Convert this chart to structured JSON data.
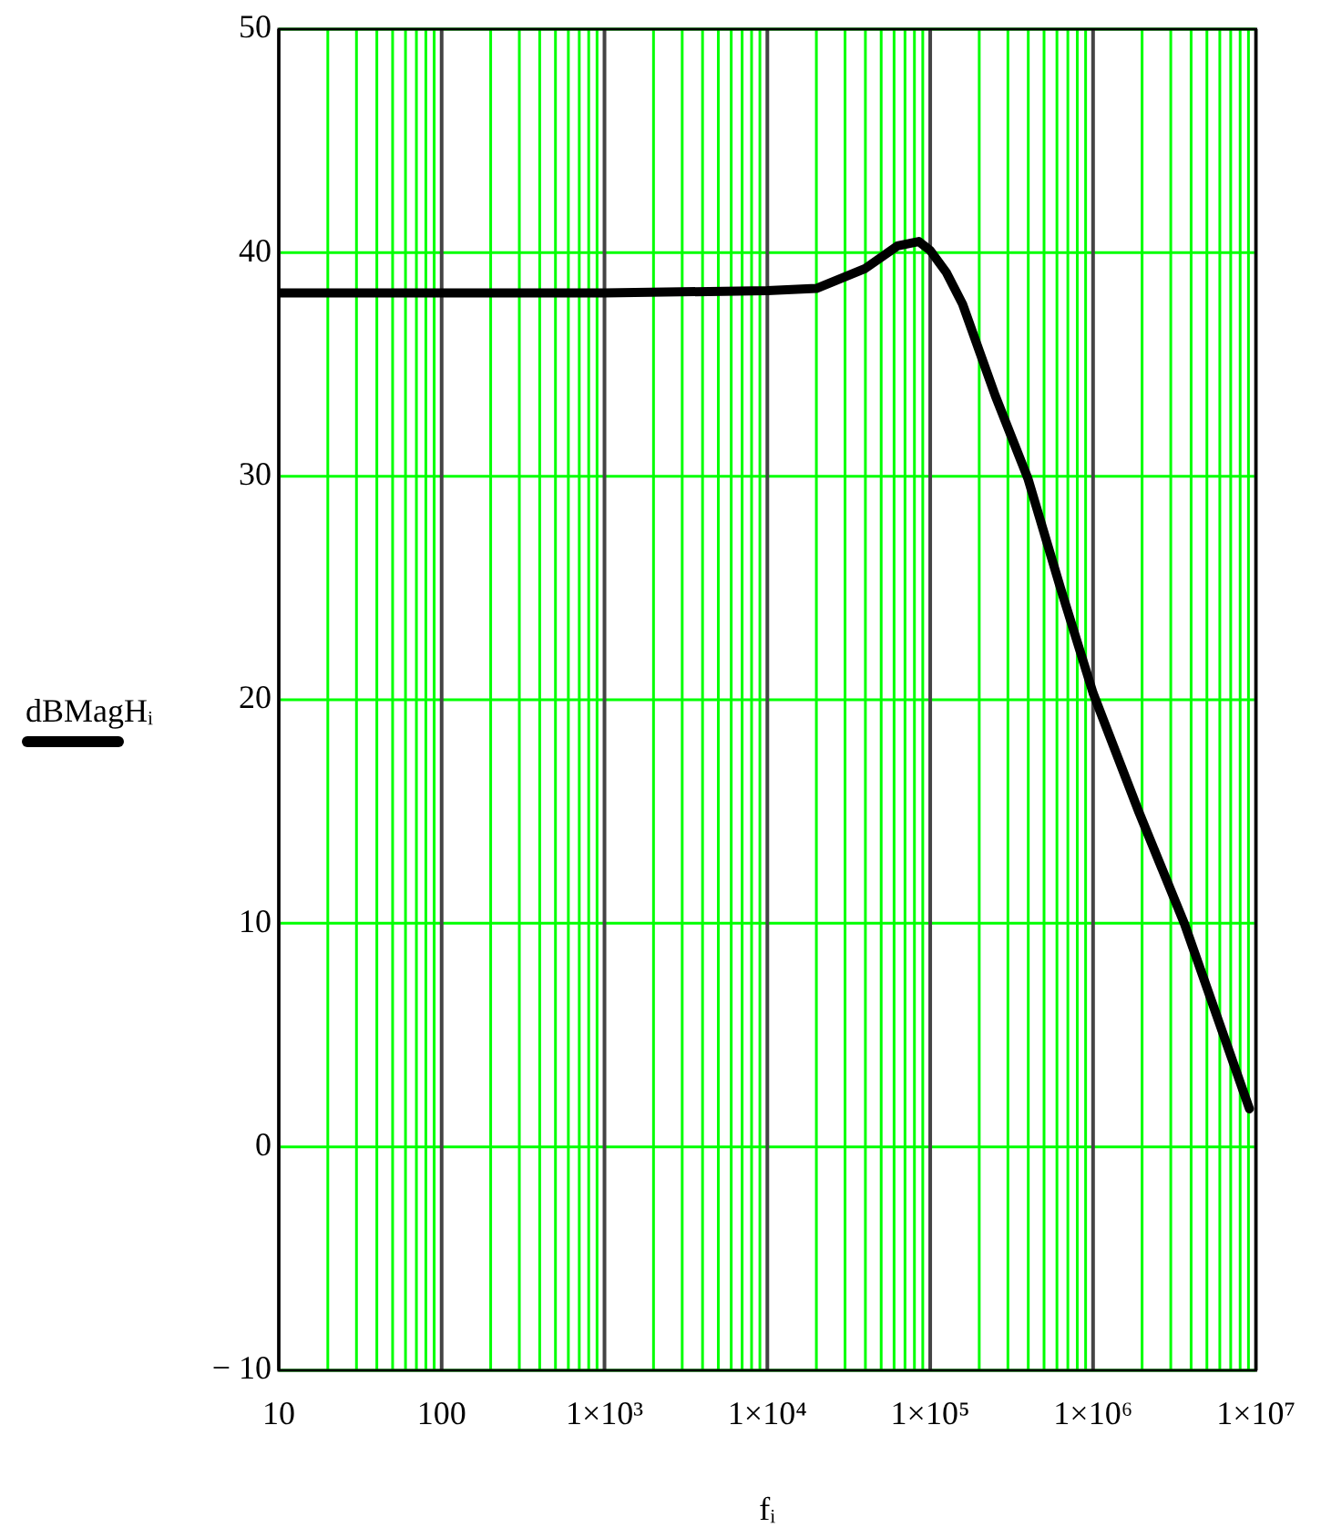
{
  "chart_data": {
    "type": "line",
    "xlabel": "fᵢ",
    "ylabel": "dBMagHᵢ",
    "log": "x",
    "x": [
      10,
      100,
      1000,
      10000,
      20000,
      40000,
      63000,
      85000,
      100000,
      126000,
      158000,
      251000,
      398000,
      631000,
      1000000,
      1905000,
      3631000,
      9120000
    ],
    "series": [
      {
        "color": "#000000",
        "values": [
          38.2,
          38.2,
          38.2,
          38.3,
          38.4,
          39.3,
          40.3,
          40.5,
          40.1,
          39.1,
          37.7,
          33.6,
          29.9,
          25.0,
          20.3,
          15.0,
          10.0,
          1.7
        ]
      }
    ],
    "xlim": [
      10,
      10000000
    ],
    "xticks": [
      10,
      100,
      {
        "value": 1000,
        "label": "1×10³"
      },
      {
        "value": 10000,
        "label": "1×10⁴"
      },
      {
        "value": 100000,
        "label": "1×10⁵"
      },
      {
        "value": 1000000,
        "label": "1×10⁶"
      },
      {
        "value": 10000000,
        "label": "1×10⁷"
      }
    ],
    "ylim": [
      -10,
      50
    ],
    "yticks": [
      {
        "value": -10,
        "label": "− 10"
      },
      0,
      10,
      20,
      30,
      40,
      50
    ],
    "grid": true,
    "legend": false,
    "marker": "none",
    "line_style": "solid"
  }
}
